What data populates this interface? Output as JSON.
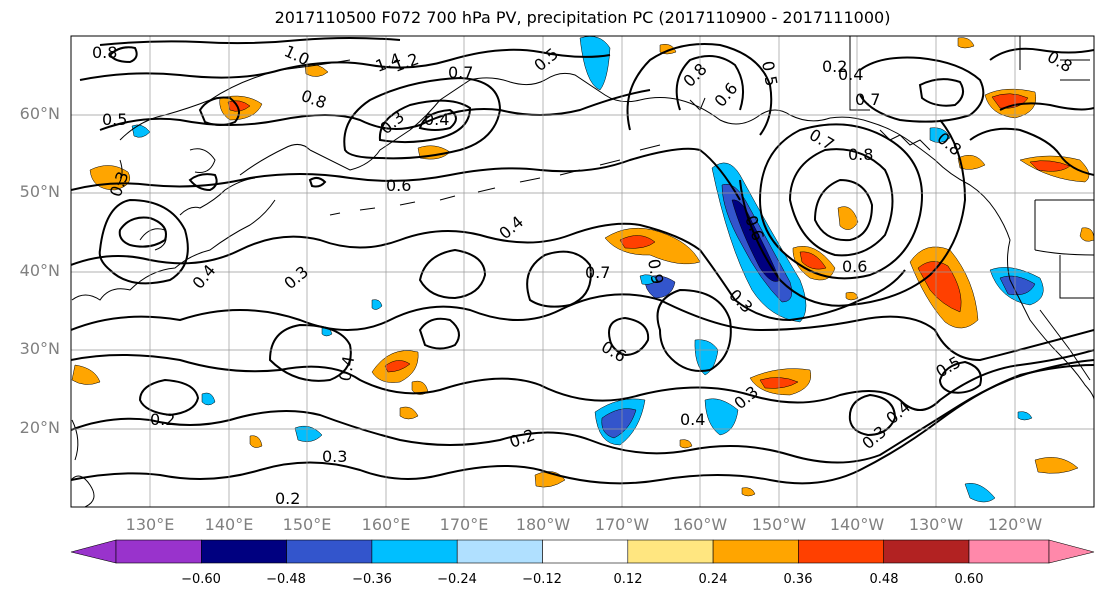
{
  "title": "2017110500 F072 700 hPa PV, precipitation PC (2017110900 - 2017111000)",
  "lat_labels": [
    "60°N",
    "50°N",
    "40°N",
    "30°N",
    "20°N"
  ],
  "lon_labels": [
    "130°E",
    "140°E",
    "150°E",
    "160°E",
    "170°E",
    "180°W",
    "170°W",
    "160°W",
    "150°W",
    "140°W",
    "130°W",
    "120°W"
  ],
  "colorbar": {
    "ticks": [
      "−0.60",
      "−0.48",
      "−0.36",
      "−0.24",
      "−0.12",
      "0.12",
      "0.24",
      "0.36",
      "0.48",
      "0.60"
    ],
    "colors": [
      "#9933cc",
      "#000080",
      "#3355cc",
      "#00bfff",
      "#b0e0ff",
      "#ffffff",
      "#ffe680",
      "#ffa500",
      "#ff4000",
      "#b22222",
      "#ff88aa"
    ]
  },
  "contour_labels": [
    "0.8",
    "1.0",
    "1.4",
    "1.2",
    "0.7",
    "0.5",
    "0.8",
    "0.3",
    "0.4",
    "0.8",
    "0.5",
    "0.8",
    "0.2",
    "0.4",
    "0.6",
    "0.5",
    "0.8",
    "0.7",
    "0.8",
    "0.6",
    "0.4",
    "0.7",
    "0.9",
    "0.6",
    "0.3",
    "0.6",
    "0.3",
    "0.4",
    "0.4",
    "0.6",
    "0.3",
    "0.4",
    "0.2",
    "0.3",
    "0.4",
    "0.3",
    "0.5",
    "0.2",
    "0.2",
    "0.3",
    "0.7"
  ]
}
